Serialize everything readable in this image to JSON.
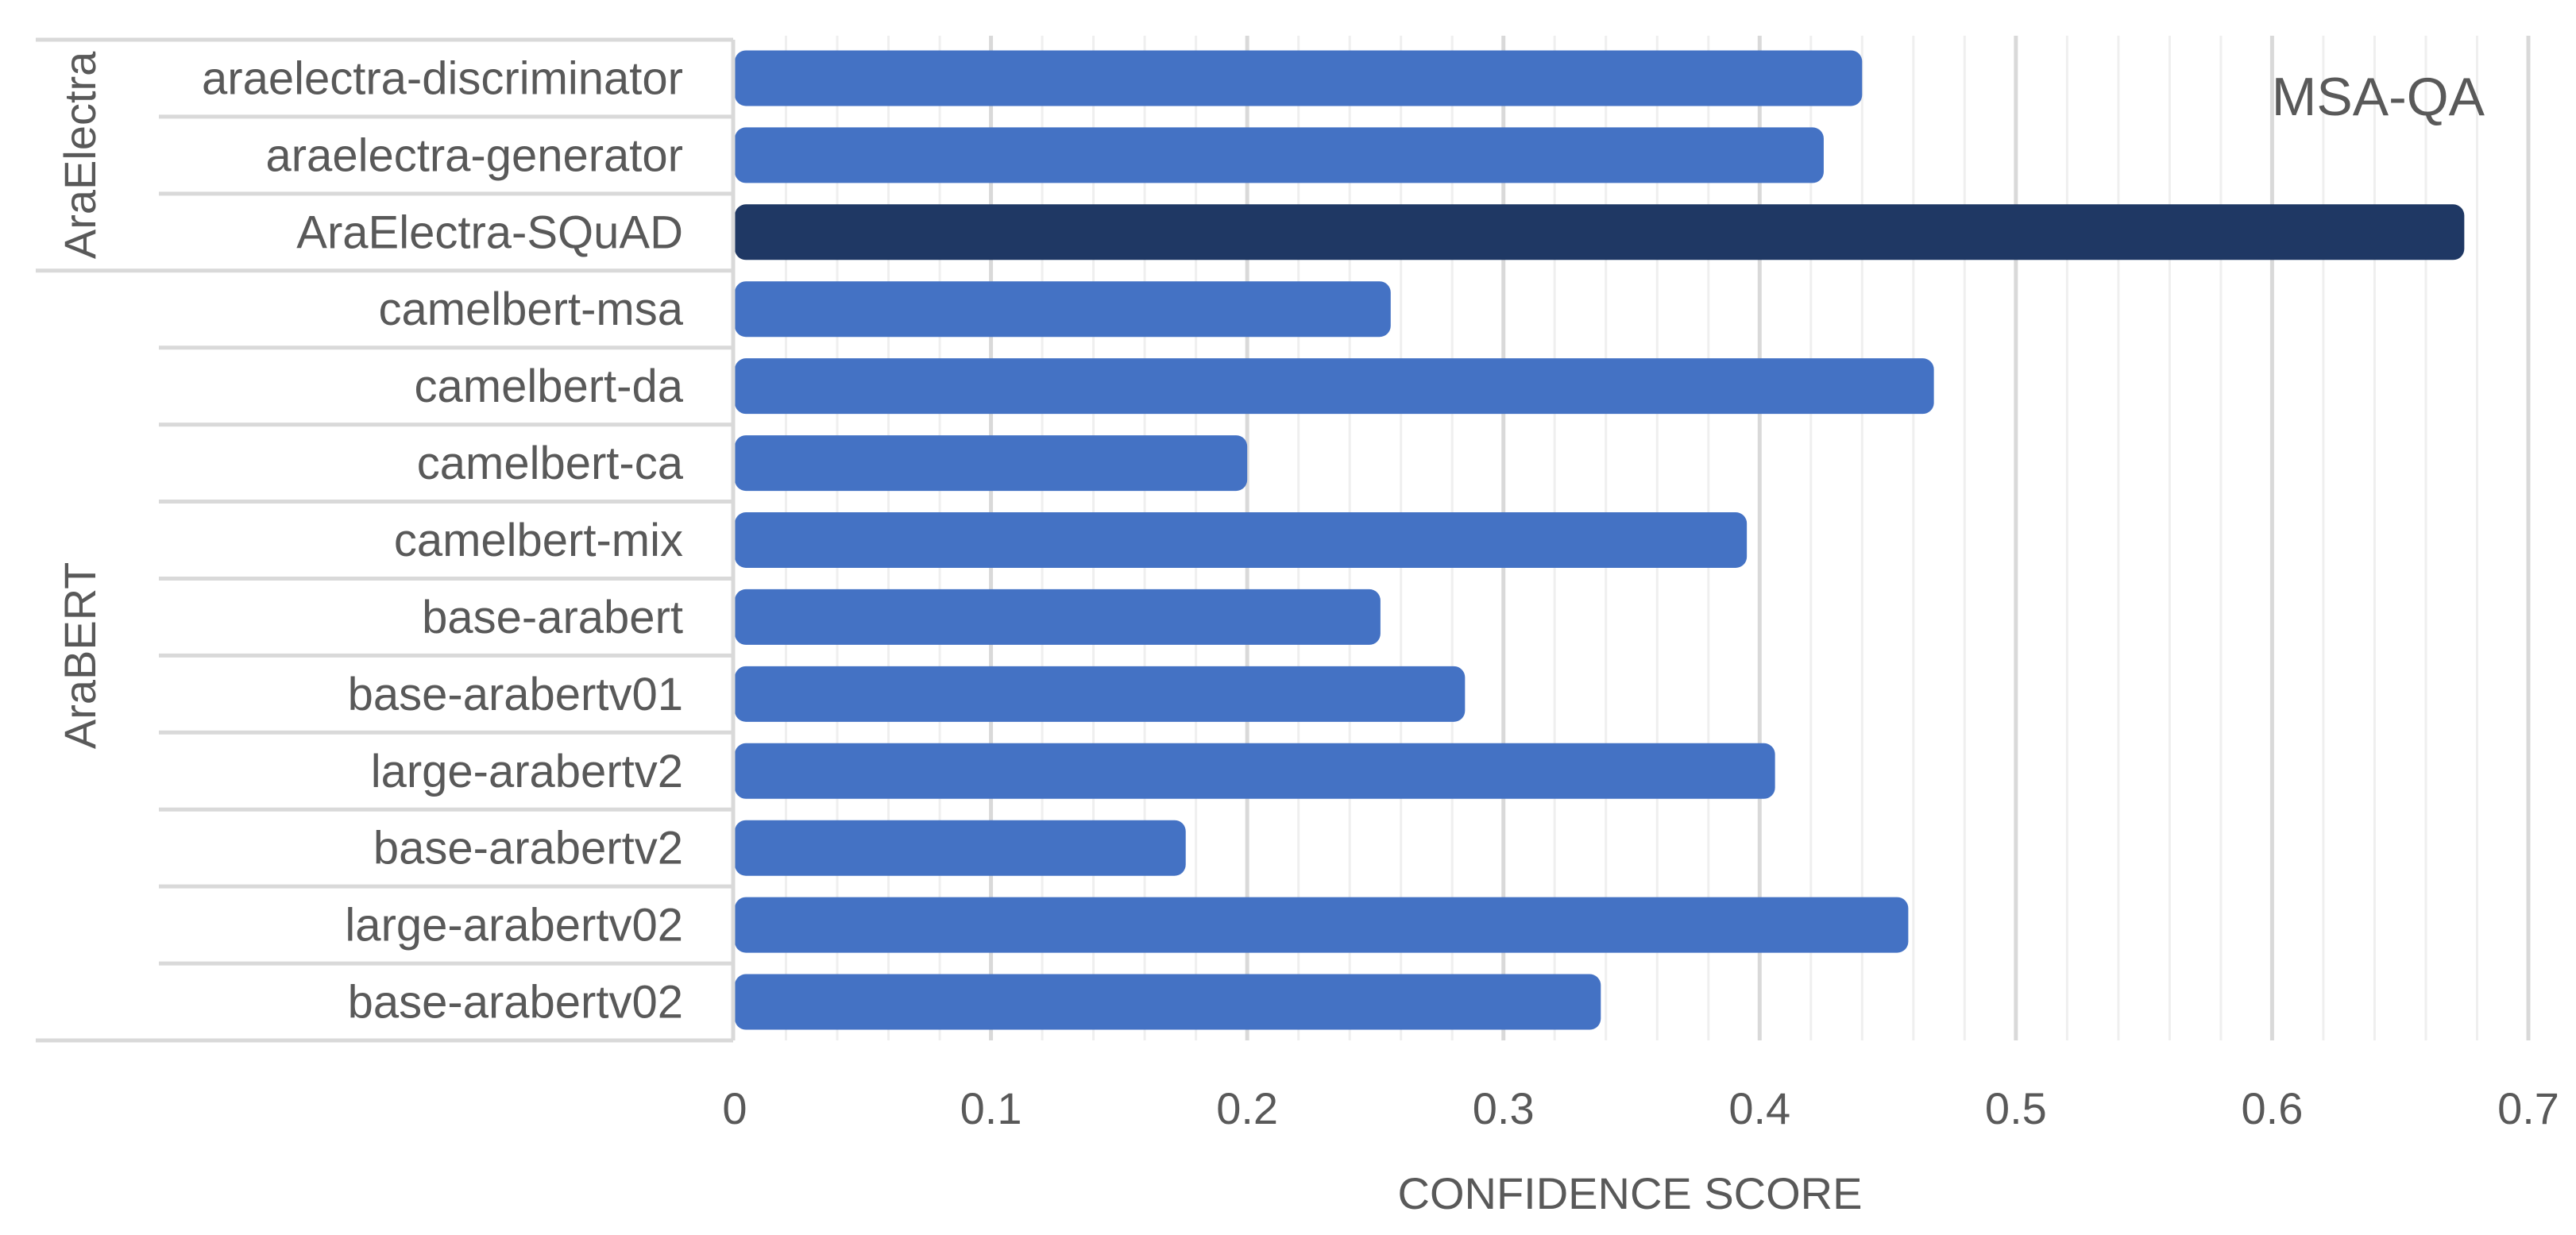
{
  "chart_data": {
    "type": "bar",
    "orientation": "horizontal",
    "title": "MSA-QA",
    "xlabel": "CONFIDENCE SCORE",
    "ylabel": "",
    "xlim": [
      0,
      0.7
    ],
    "x_ticks": [
      "0",
      "0.1",
      "0.2",
      "0.3",
      "0.4",
      "0.5",
      "0.6",
      "0.7"
    ],
    "grid": "vertical major and minor gridlines",
    "categories": [
      "araelectra-discriminator",
      "araelectra-generator",
      "AraElectra-SQuAD",
      "camelbert-msa",
      "camelbert-da",
      "camelbert-ca",
      "camelbert-mix",
      "base-arabert",
      "base-arabertv01",
      "large-arabertv2",
      "base-arabertv2",
      "large-arabertv02",
      "base-arabertv02"
    ],
    "values": [
      0.44,
      0.425,
      0.675,
      0.256,
      0.468,
      0.2,
      0.395,
      0.252,
      0.285,
      0.406,
      0.176,
      0.458,
      0.338
    ],
    "groups": [
      {
        "label": "AraElectra",
        "members": [
          "araelectra-discriminator",
          "araelectra-generator",
          "AraElectra-SQuAD"
        ]
      },
      {
        "label": "AraBERT",
        "members": [
          "camelbert-msa",
          "camelbert-da",
          "camelbert-ca",
          "camelbert-mix",
          "base-arabert",
          "base-arabertv01",
          "large-arabertv2",
          "base-arabertv2",
          "large-arabertv02",
          "base-arabertv02"
        ]
      }
    ],
    "highlight": "AraElectra-SQuAD",
    "colors": {
      "bar": "#4472C4",
      "highlight_bar": "#1F3864",
      "text": "#595959",
      "major_grid": "#D9D9D9",
      "minor_grid": "#EFEFEF",
      "axis_line": "#D9D9D9"
    }
  }
}
